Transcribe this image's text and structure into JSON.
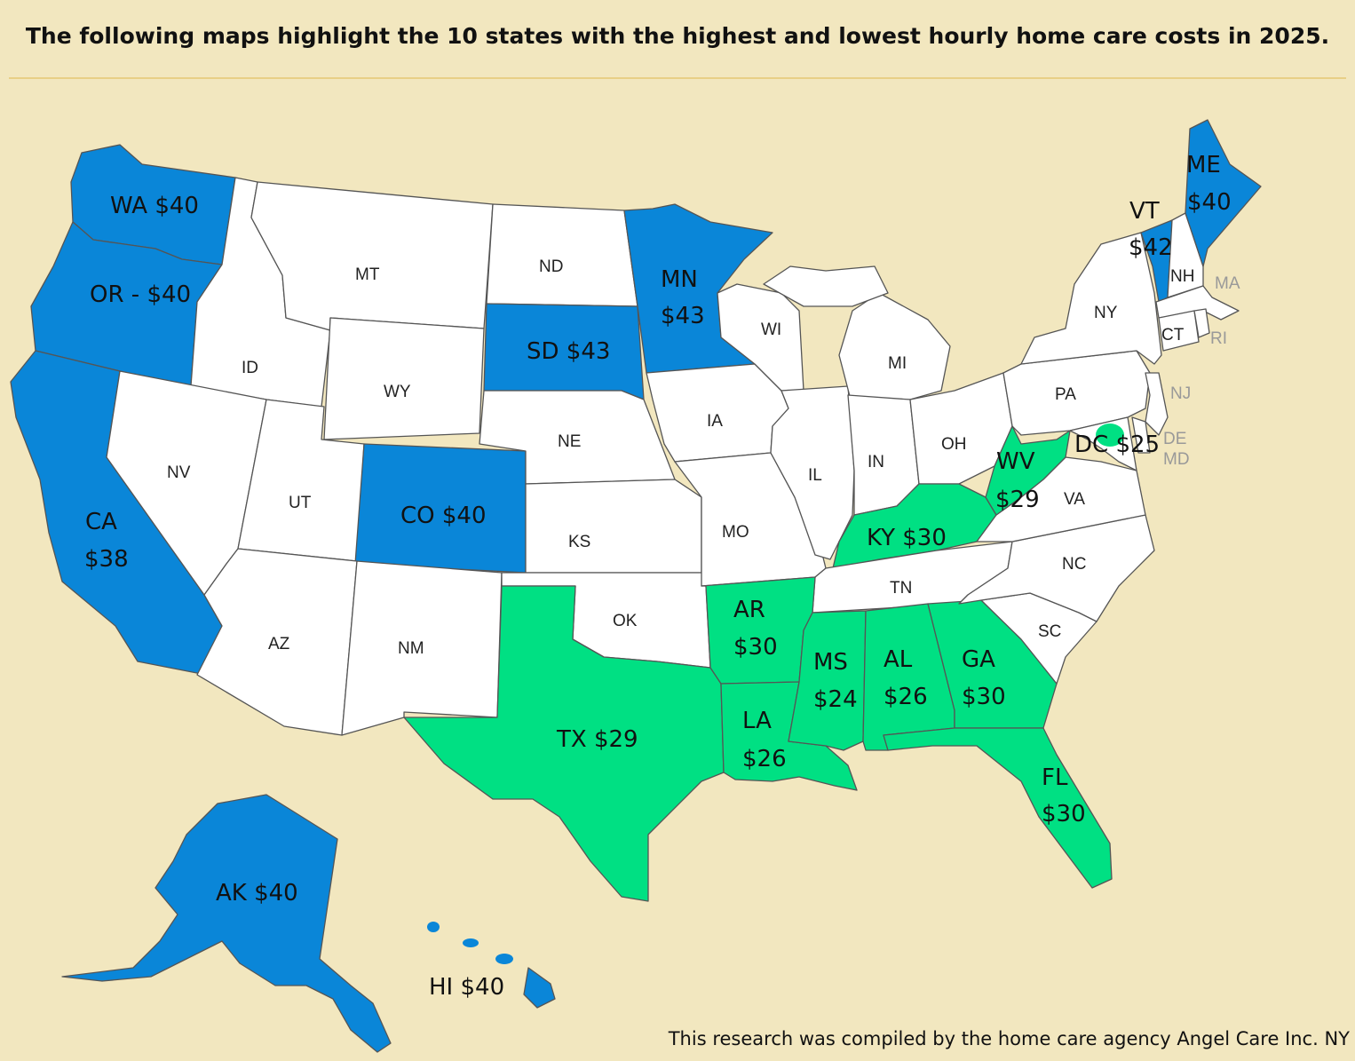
{
  "title": "The following maps highlight the 10 states with the highest and lowest  hourly home care costs in 2025.",
  "footer": "This research was compiled by the home care agency Angel Care Inc. NY",
  "colors": {
    "background": "#f2e7bf",
    "highest_cost": "#0a86d8",
    "lowest_cost": "#00e083",
    "other": "#ffffff"
  },
  "states": {
    "WA": {
      "code": "WA",
      "cost": "$40",
      "label": "WA $40",
      "group": "highest"
    },
    "OR": {
      "code": "OR",
      "cost": "$40",
      "label": "OR - $40",
      "group": "highest"
    },
    "CA": {
      "code": "CA",
      "cost": "$38",
      "group": "highest"
    },
    "MN": {
      "code": "MN",
      "cost": "$43",
      "group": "highest"
    },
    "SD": {
      "code": "SD",
      "cost": "$43",
      "label": "SD $43",
      "group": "highest"
    },
    "CO": {
      "code": "CO",
      "cost": "$40",
      "label": "CO $40",
      "group": "highest"
    },
    "VT": {
      "code": "VT",
      "cost": "$42",
      "group": "highest"
    },
    "ME": {
      "code": "ME",
      "cost": "$40",
      "group": "highest"
    },
    "AK": {
      "code": "AK",
      "cost": "$40",
      "label": "AK $40",
      "group": "highest"
    },
    "HI": {
      "code": "HI",
      "cost": "$40",
      "label": "HI $40",
      "group": "highest"
    },
    "TX": {
      "code": "TX",
      "cost": "$29",
      "label": "TX $29",
      "group": "lowest"
    },
    "AR": {
      "code": "AR",
      "cost": "$30",
      "group": "lowest"
    },
    "LA": {
      "code": "LA",
      "cost": "$26",
      "group": "lowest"
    },
    "MS": {
      "code": "MS",
      "cost": "$24",
      "group": "lowest"
    },
    "AL": {
      "code": "AL",
      "cost": "$26",
      "group": "lowest"
    },
    "GA": {
      "code": "GA",
      "cost": "$30",
      "group": "lowest"
    },
    "FL": {
      "code": "FL",
      "cost": "$30",
      "group": "lowest"
    },
    "KY": {
      "code": "KY",
      "cost": "$30",
      "label": "KY $30",
      "group": "lowest"
    },
    "WV": {
      "code": "WV",
      "cost": "$29",
      "group": "lowest"
    },
    "DC": {
      "code": "DC",
      "cost": "$25",
      "label": "DC $25",
      "group": "lowest"
    }
  },
  "other_states": {
    "MT": "MT",
    "ID": "ID",
    "WY": "WY",
    "NV": "NV",
    "UT": "UT",
    "AZ": "AZ",
    "NM": "NM",
    "ND": "ND",
    "NE": "NE",
    "KS": "KS",
    "OK": "OK",
    "IA": "IA",
    "MO": "MO",
    "WI": "WI",
    "IL": "IL",
    "MI": "MI",
    "IN": "IN",
    "OH": "OH",
    "TN": "TN",
    "NC": "NC",
    "SC": "SC",
    "VA": "VA",
    "PA": "PA",
    "NY": "NY",
    "NJ": "NJ",
    "DE": "DE",
    "MD": "MD",
    "CT": "CT",
    "RI": "RI",
    "MA": "MA",
    "NH": "NH"
  }
}
